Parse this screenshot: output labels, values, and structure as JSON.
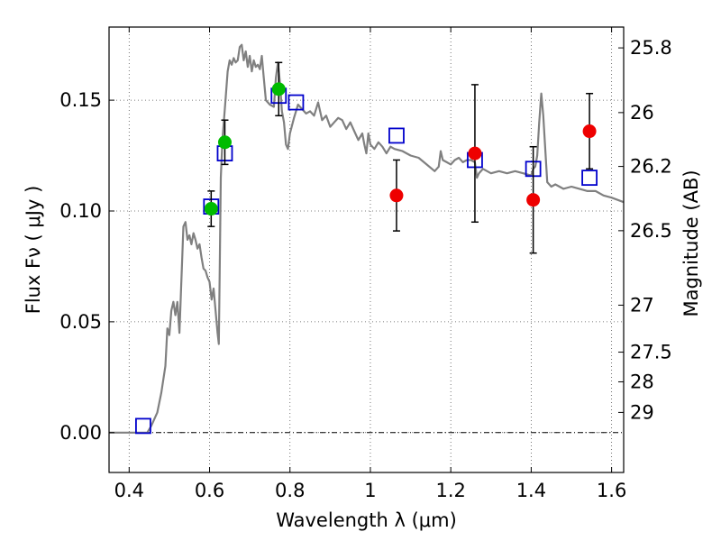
{
  "chart_data": {
    "type": "scatter",
    "xlabel": "Wavelength  λ (μm)",
    "ylabel": "Flux  Fν  ( μJy )",
    "ylabel_right": "Magnitude (AB)",
    "xlim": [
      0.35,
      1.63
    ],
    "ylim": [
      -0.018,
      0.183
    ],
    "grid": true,
    "x_ticks": [
      0.4,
      0.6,
      0.8,
      1.0,
      1.2,
      1.4,
      1.6
    ],
    "x_tick_labels": [
      "0.4",
      "0.6",
      "0.8",
      "1",
      "1.2",
      "1.4",
      "1.6"
    ],
    "y_ticks": [
      0.0,
      0.05,
      0.1,
      0.15
    ],
    "y_tick_labels": [
      "0.00",
      "0.05",
      "0.10",
      "0.15"
    ],
    "right_ticks": [
      {
        "label": "25.8",
        "flux": 0.1736
      },
      {
        "label": "26",
        "flux": 0.1444
      },
      {
        "label": "26.2",
        "flux": 0.1201
      },
      {
        "label": "26.5",
        "flux": 0.0911
      },
      {
        "label": "27",
        "flux": 0.0575
      },
      {
        "label": "27.5",
        "flux": 0.0363
      },
      {
        "label": "28",
        "flux": 0.0229
      },
      {
        "label": "29",
        "flux": 0.0091
      }
    ],
    "colors": {
      "model": "#808080",
      "model_photometry": "#0000cc",
      "observed_green": "#00bb00",
      "observed_red": "#ee0000",
      "errorbar": "#000000",
      "grid": "#555555"
    },
    "series": [
      {
        "type": "line",
        "points": [
          [
            0.35,
            0.0
          ],
          [
            0.43,
            0.0
          ],
          [
            0.445,
            0.0
          ],
          [
            0.455,
            0.003
          ],
          [
            0.47,
            0.009
          ],
          [
            0.48,
            0.018
          ],
          [
            0.49,
            0.03
          ],
          [
            0.495,
            0.047
          ],
          [
            0.5,
            0.044
          ],
          [
            0.505,
            0.055
          ],
          [
            0.51,
            0.059
          ],
          [
            0.515,
            0.053
          ],
          [
            0.52,
            0.059
          ],
          [
            0.525,
            0.045
          ],
          [
            0.53,
            0.069
          ],
          [
            0.535,
            0.093
          ],
          [
            0.54,
            0.095
          ],
          [
            0.545,
            0.087
          ],
          [
            0.55,
            0.089
          ],
          [
            0.555,
            0.085
          ],
          [
            0.56,
            0.09
          ],
          [
            0.565,
            0.087
          ],
          [
            0.57,
            0.083
          ],
          [
            0.575,
            0.085
          ],
          [
            0.58,
            0.079
          ],
          [
            0.585,
            0.074
          ],
          [
            0.59,
            0.073
          ],
          [
            0.595,
            0.07
          ],
          [
            0.6,
            0.068
          ],
          [
            0.605,
            0.06
          ],
          [
            0.61,
            0.065
          ],
          [
            0.615,
            0.055
          ],
          [
            0.62,
            0.045
          ],
          [
            0.623,
            0.04
          ],
          [
            0.625,
            0.07
          ],
          [
            0.628,
            0.115
          ],
          [
            0.632,
            0.132
          ],
          [
            0.64,
            0.151
          ],
          [
            0.645,
            0.163
          ],
          [
            0.65,
            0.168
          ],
          [
            0.655,
            0.166
          ],
          [
            0.66,
            0.169
          ],
          [
            0.665,
            0.167
          ],
          [
            0.67,
            0.168
          ],
          [
            0.675,
            0.174
          ],
          [
            0.68,
            0.175
          ],
          [
            0.685,
            0.168
          ],
          [
            0.69,
            0.172
          ],
          [
            0.695,
            0.165
          ],
          [
            0.7,
            0.17
          ],
          [
            0.705,
            0.163
          ],
          [
            0.71,
            0.168
          ],
          [
            0.715,
            0.165
          ],
          [
            0.72,
            0.166
          ],
          [
            0.725,
            0.164
          ],
          [
            0.73,
            0.17
          ],
          [
            0.735,
            0.16
          ],
          [
            0.74,
            0.15
          ],
          [
            0.75,
            0.148
          ],
          [
            0.76,
            0.147
          ],
          [
            0.765,
            0.16
          ],
          [
            0.77,
            0.167
          ],
          [
            0.775,
            0.158
          ],
          [
            0.78,
            0.145
          ],
          [
            0.785,
            0.14
          ],
          [
            0.79,
            0.13
          ],
          [
            0.795,
            0.128
          ],
          [
            0.8,
            0.135
          ],
          [
            0.81,
            0.142
          ],
          [
            0.82,
            0.148
          ],
          [
            0.83,
            0.146
          ],
          [
            0.84,
            0.144
          ],
          [
            0.85,
            0.145
          ],
          [
            0.86,
            0.143
          ],
          [
            0.87,
            0.149
          ],
          [
            0.88,
            0.141
          ],
          [
            0.89,
            0.143
          ],
          [
            0.9,
            0.138
          ],
          [
            0.91,
            0.14
          ],
          [
            0.92,
            0.142
          ],
          [
            0.93,
            0.141
          ],
          [
            0.94,
            0.137
          ],
          [
            0.95,
            0.14
          ],
          [
            0.96,
            0.136
          ],
          [
            0.97,
            0.132
          ],
          [
            0.98,
            0.135
          ],
          [
            0.985,
            0.13
          ],
          [
            0.99,
            0.126
          ],
          [
            0.995,
            0.135
          ],
          [
            1.0,
            0.13
          ],
          [
            1.01,
            0.128
          ],
          [
            1.02,
            0.131
          ],
          [
            1.03,
            0.129
          ],
          [
            1.04,
            0.126
          ],
          [
            1.05,
            0.129
          ],
          [
            1.06,
            0.128
          ],
          [
            1.08,
            0.127
          ],
          [
            1.1,
            0.125
          ],
          [
            1.12,
            0.124
          ],
          [
            1.14,
            0.121
          ],
          [
            1.16,
            0.118
          ],
          [
            1.17,
            0.12
          ],
          [
            1.175,
            0.127
          ],
          [
            1.18,
            0.123
          ],
          [
            1.19,
            0.122
          ],
          [
            1.2,
            0.121
          ],
          [
            1.21,
            0.123
          ],
          [
            1.22,
            0.124
          ],
          [
            1.23,
            0.122
          ],
          [
            1.24,
            0.123
          ],
          [
            1.25,
            0.123
          ],
          [
            1.26,
            0.122
          ],
          [
            1.265,
            0.115
          ],
          [
            1.27,
            0.117
          ],
          [
            1.28,
            0.119
          ],
          [
            1.3,
            0.117
          ],
          [
            1.32,
            0.118
          ],
          [
            1.34,
            0.117
          ],
          [
            1.36,
            0.118
          ],
          [
            1.38,
            0.117
          ],
          [
            1.4,
            0.116
          ],
          [
            1.405,
            0.119
          ],
          [
            1.41,
            0.12
          ],
          [
            1.415,
            0.125
          ],
          [
            1.42,
            0.14
          ],
          [
            1.425,
            0.153
          ],
          [
            1.43,
            0.143
          ],
          [
            1.44,
            0.113
          ],
          [
            1.45,
            0.111
          ],
          [
            1.46,
            0.112
          ],
          [
            1.48,
            0.11
          ],
          [
            1.5,
            0.111
          ],
          [
            1.52,
            0.11
          ],
          [
            1.54,
            0.109
          ],
          [
            1.56,
            0.109
          ],
          [
            1.58,
            0.107
          ],
          [
            1.6,
            0.106
          ],
          [
            1.63,
            0.104
          ]
        ]
      },
      {
        "type": "scatter",
        "marker": "open-square",
        "points": [
          [
            0.435,
            0.003
          ],
          [
            0.604,
            0.102
          ],
          [
            0.638,
            0.126
          ],
          [
            0.772,
            0.152
          ],
          [
            0.815,
            0.149
          ],
          [
            1.065,
            0.134
          ],
          [
            1.26,
            0.123
          ],
          [
            1.405,
            0.119
          ],
          [
            1.545,
            0.115
          ]
        ]
      },
      {
        "type": "scatter",
        "marker": "filled-circle",
        "points": [
          {
            "x": 0.604,
            "y": 0.101,
            "err": 0.008
          },
          {
            "x": 0.638,
            "y": 0.131,
            "err": 0.01
          },
          {
            "x": 0.772,
            "y": 0.155,
            "err": 0.012
          }
        ]
      },
      {
        "type": "scatter",
        "marker": "filled-circle",
        "points": [
          {
            "x": 1.065,
            "y": 0.107,
            "err": 0.016
          },
          {
            "x": 1.26,
            "y": 0.126,
            "err": 0.031
          },
          {
            "x": 1.405,
            "y": 0.105,
            "err": 0.024
          },
          {
            "x": 1.545,
            "y": 0.136,
            "err": 0.017
          }
        ]
      }
    ]
  }
}
